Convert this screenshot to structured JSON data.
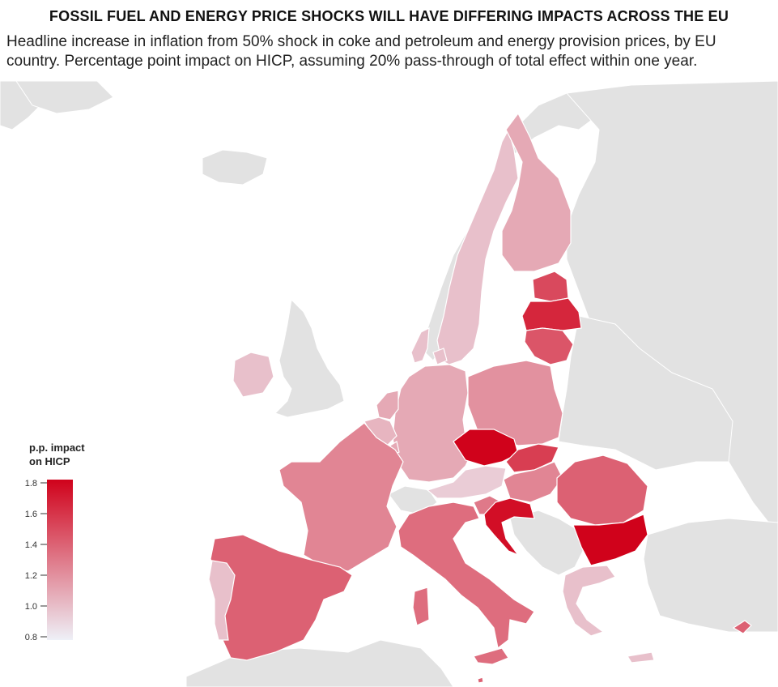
{
  "header": {
    "title": "FOSSIL FUEL AND ENERGY PRICE SHOCKS WILL HAVE DIFFERING IMPACTS ACROSS THE EU",
    "subtitle": "Headline increase in inflation from 50% shock in coke and petroleum and energy provision prices, by EU country. Percentage point impact on HICP, assuming 20%  pass-through of total effect within one year."
  },
  "legend": {
    "title_line1": "p.p. impact",
    "title_line2": "on HICP",
    "ticks": [
      "1.8",
      "1.6",
      "1.4",
      "1.2",
      "1.0",
      "0.8"
    ],
    "min": 0.8,
    "max": 1.8,
    "color_low": "#eef0f7",
    "color_high": "#d0021b"
  },
  "colors": {
    "land_non_eu": "#e2e2e2",
    "sea": "#ffffff",
    "border": "#ffffff"
  },
  "countries": [
    {
      "name": "Sweden",
      "value": 1.0
    },
    {
      "name": "Finland",
      "value": 1.1
    },
    {
      "name": "Estonia",
      "value": 1.5
    },
    {
      "name": "Latvia",
      "value": 1.65
    },
    {
      "name": "Lithuania",
      "value": 1.45
    },
    {
      "name": "Denmark",
      "value": 1.0
    },
    {
      "name": "Germany",
      "value": 1.1
    },
    {
      "name": "Poland",
      "value": 1.2
    },
    {
      "name": "Netherlands",
      "value": 1.1
    },
    {
      "name": "Belgium",
      "value": 1.05
    },
    {
      "name": "Luxembourg",
      "value": 1.1
    },
    {
      "name": "France",
      "value": 1.25
    },
    {
      "name": "Czechia",
      "value": 1.8
    },
    {
      "name": "Slovakia",
      "value": 1.55
    },
    {
      "name": "Austria",
      "value": 0.95
    },
    {
      "name": "Hungary",
      "value": 1.25
    },
    {
      "name": "Slovenia",
      "value": 1.3
    },
    {
      "name": "Croatia",
      "value": 1.75
    },
    {
      "name": "Romania",
      "value": 1.4
    },
    {
      "name": "Bulgaria",
      "value": 1.8
    },
    {
      "name": "Italy",
      "value": 1.35
    },
    {
      "name": "Spain",
      "value": 1.4
    },
    {
      "name": "Portugal",
      "value": 1.0
    },
    {
      "name": "Greece",
      "value": 1.0
    },
    {
      "name": "Ireland",
      "value": 1.0
    },
    {
      "name": "Cyprus",
      "value": 1.4
    },
    {
      "name": "Malta",
      "value": 1.4
    }
  ]
}
